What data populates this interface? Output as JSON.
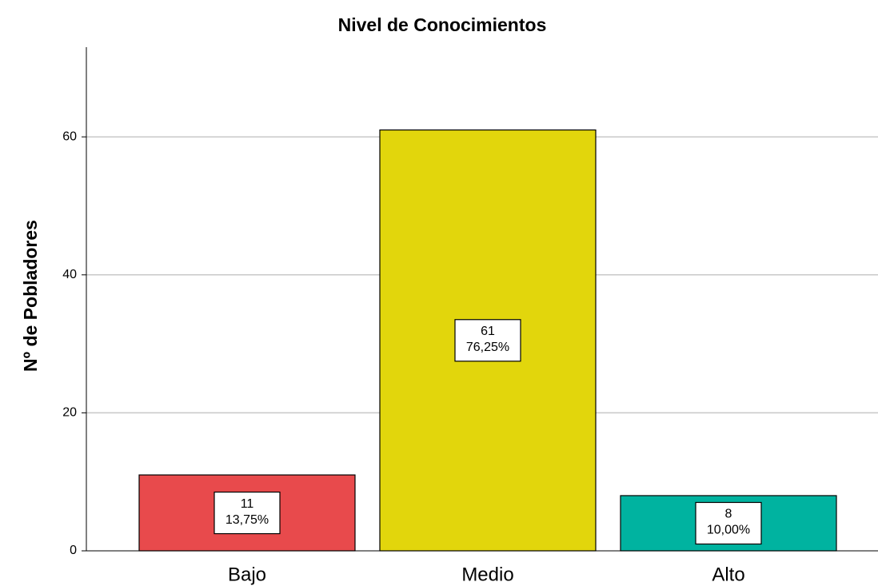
{
  "chart_data": {
    "type": "bar",
    "title": "Nivel de Conocimientos",
    "y_label": "Nº de Pobladores",
    "categories": [
      "Bajo",
      "Medio",
      "Alto"
    ],
    "values": [
      11,
      61,
      8
    ],
    "percent_labels": [
      "13,75%",
      "76,25%",
      "10,00%"
    ],
    "colors": [
      "#e84a4c",
      "#e2d60c",
      "#00b3a0"
    ],
    "ylim": [
      0,
      73
    ],
    "yticks": [
      0,
      20,
      40,
      60
    ],
    "grid": true
  }
}
